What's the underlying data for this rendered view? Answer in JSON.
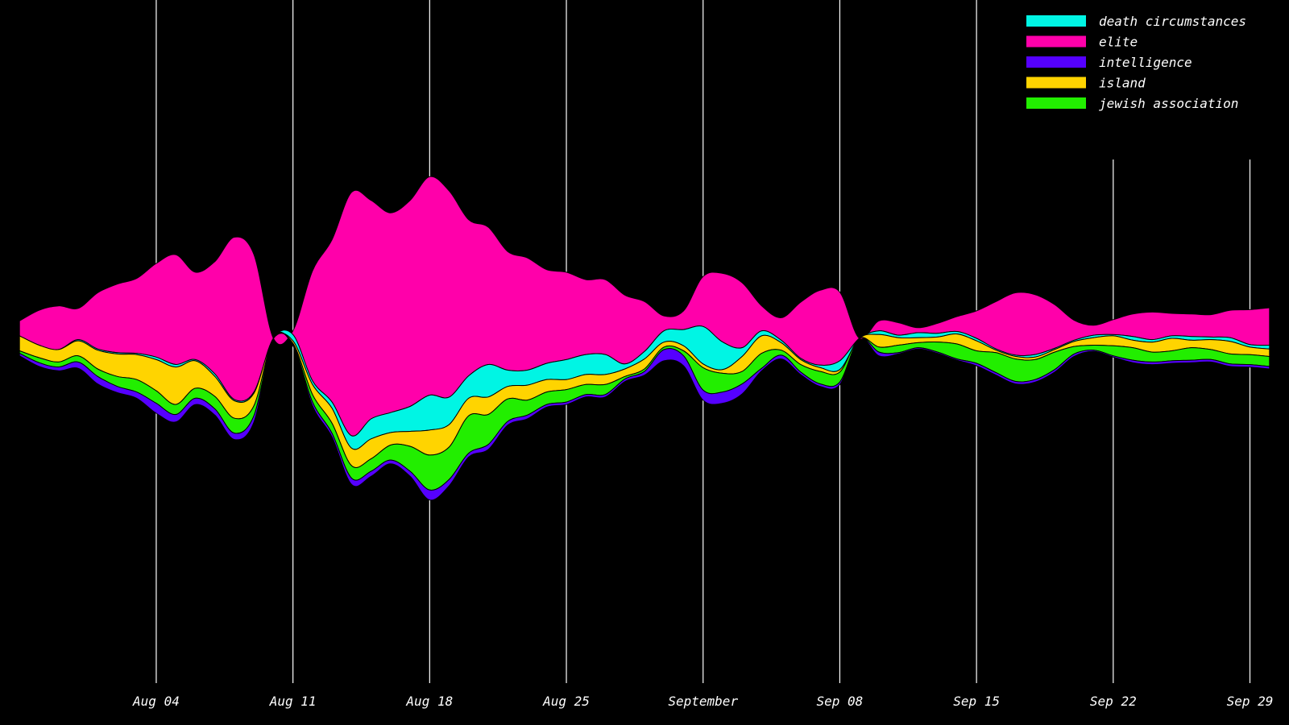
{
  "chart_data": {
    "type": "area",
    "layout": "streamgraph",
    "title": "",
    "xlabel": "",
    "ylabel": "",
    "xlim": [
      "2019-07-27",
      "2019-10-01"
    ],
    "x_ticks": [
      {
        "date": "2019-08-04",
        "label": "Aug 04"
      },
      {
        "date": "2019-08-11",
        "label": "Aug 11"
      },
      {
        "date": "2019-08-18",
        "label": "Aug 18"
      },
      {
        "date": "2019-08-25",
        "label": "Aug 25"
      },
      {
        "date": "2019-09-01",
        "label": "September"
      },
      {
        "date": "2019-09-08",
        "label": "Sep 08"
      },
      {
        "date": "2019-09-15",
        "label": "Sep 15"
      },
      {
        "date": "2019-09-22",
        "label": "Sep 22"
      },
      {
        "date": "2019-09-29",
        "label": "Sep 29"
      }
    ],
    "grid": true,
    "legend_position": "top-right",
    "x": [
      "2019-07-28",
      "2019-07-29",
      "2019-07-30",
      "2019-07-31",
      "2019-08-01",
      "2019-08-02",
      "2019-08-03",
      "2019-08-04",
      "2019-08-05",
      "2019-08-06",
      "2019-08-07",
      "2019-08-08",
      "2019-08-09",
      "2019-08-10",
      "2019-08-11",
      "2019-08-12",
      "2019-08-13",
      "2019-08-14",
      "2019-08-15",
      "2019-08-16",
      "2019-08-17",
      "2019-08-18",
      "2019-08-19",
      "2019-08-20",
      "2019-08-21",
      "2019-08-22",
      "2019-08-23",
      "2019-08-24",
      "2019-08-25",
      "2019-08-26",
      "2019-08-27",
      "2019-08-28",
      "2019-08-29",
      "2019-08-30",
      "2019-08-31",
      "2019-09-01",
      "2019-09-02",
      "2019-09-03",
      "2019-09-04",
      "2019-09-05",
      "2019-09-06",
      "2019-09-07",
      "2019-09-08",
      "2019-09-09",
      "2019-09-10",
      "2019-09-11",
      "2019-09-12",
      "2019-09-13",
      "2019-09-14",
      "2019-09-15",
      "2019-09-16",
      "2019-09-17",
      "2019-09-18",
      "2019-09-19",
      "2019-09-20",
      "2019-09-21",
      "2019-09-22",
      "2019-09-23",
      "2019-09-24",
      "2019-09-25",
      "2019-09-26",
      "2019-09-27",
      "2019-09-28",
      "2019-09-29",
      "2019-09-30"
    ],
    "series": [
      {
        "name": "death circumstances",
        "color": "#00f5e4",
        "values": [
          0,
          0,
          0,
          1,
          1,
          1,
          1,
          2,
          2,
          1,
          2,
          1,
          1,
          0,
          5,
          3,
          5,
          10,
          16,
          16,
          20,
          28,
          22,
          18,
          26,
          13,
          12,
          13,
          16,
          16,
          16,
          4,
          6,
          9,
          13,
          30,
          22,
          7,
          4,
          2,
          1,
          2,
          7,
          0,
          3,
          2,
          4,
          3,
          2,
          2,
          1,
          1,
          2,
          1,
          1,
          2,
          1,
          3,
          2,
          2,
          3,
          2,
          3,
          2,
          3
        ]
      },
      {
        "name": "elite",
        "color": "#ff00aa",
        "values": [
          12,
          28,
          35,
          25,
          45,
          55,
          60,
          75,
          88,
          70,
          90,
          130,
          110,
          0,
          3,
          88,
          130,
          195,
          175,
          160,
          165,
          175,
          165,
          125,
          110,
          95,
          90,
          75,
          70,
          60,
          60,
          55,
          40,
          12,
          15,
          40,
          55,
          52,
          20,
          18,
          45,
          60,
          55,
          0,
          8,
          10,
          4,
          8,
          12,
          22,
          38,
          50,
          48,
          35,
          16,
          8,
          12,
          18,
          22,
          18,
          18,
          18,
          22,
          28,
          30
        ]
      },
      {
        "name": "intelligence",
        "color": "#5500ff",
        "values": [
          2,
          3,
          3,
          5,
          6,
          5,
          5,
          8,
          6,
          5,
          5,
          5,
          5,
          0,
          1,
          3,
          3,
          5,
          4,
          3,
          4,
          8,
          5,
          3,
          4,
          3,
          3,
          2,
          2,
          2,
          2,
          2,
          3,
          9,
          8,
          8,
          9,
          8,
          2,
          3,
          2,
          2,
          2,
          0,
          3,
          1,
          1,
          1,
          1,
          2,
          2,
          2,
          2,
          2,
          2,
          1,
          1,
          2,
          2,
          2,
          2,
          2,
          2,
          2,
          2
        ]
      },
      {
        "name": "island",
        "color": "#ffd400",
        "values": [
          12,
          10,
          10,
          12,
          15,
          18,
          20,
          25,
          30,
          22,
          16,
          14,
          10,
          0,
          2,
          8,
          12,
          14,
          16,
          10,
          12,
          20,
          18,
          14,
          14,
          10,
          12,
          10,
          8,
          8,
          8,
          6,
          8,
          4,
          4,
          3,
          3,
          12,
          14,
          6,
          4,
          3,
          2,
          0,
          10,
          6,
          4,
          4,
          8,
          8,
          2,
          2,
          2,
          2,
          4,
          6,
          8,
          6,
          8,
          10,
          6,
          8,
          10,
          6,
          6
        ]
      },
      {
        "name": "jewish association",
        "color": "#22ee00",
        "values": [
          2,
          4,
          4,
          5,
          6,
          8,
          10,
          10,
          8,
          8,
          10,
          12,
          8,
          0,
          1,
          6,
          8,
          10,
          10,
          12,
          20,
          28,
          26,
          30,
          24,
          18,
          12,
          10,
          10,
          8,
          8,
          2,
          2,
          2,
          4,
          18,
          15,
          10,
          12,
          4,
          6,
          10,
          8,
          0,
          4,
          6,
          4,
          8,
          12,
          10,
          16,
          18,
          16,
          14,
          6,
          4,
          8,
          10,
          8,
          8,
          10,
          8,
          8,
          8,
          8
        ]
      }
    ]
  }
}
